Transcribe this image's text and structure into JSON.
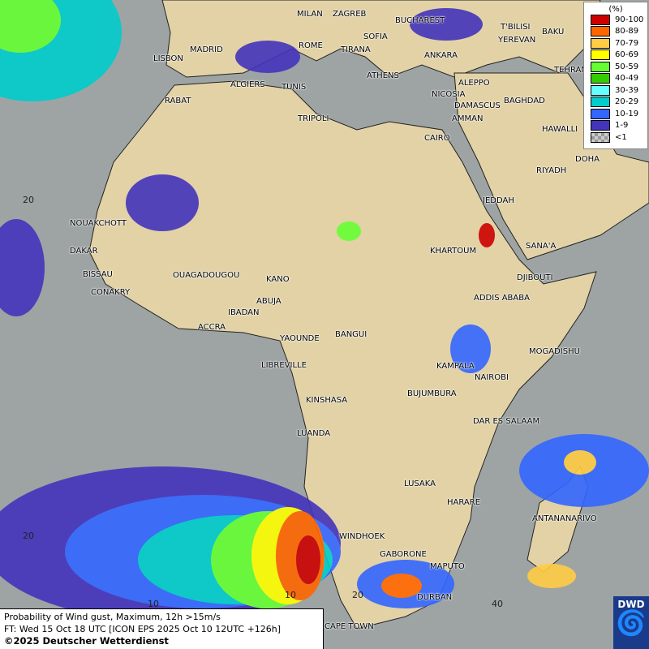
{
  "title": "Probability of Wind gust, Maximum, 12h >15m/s",
  "forecast_time": "FT: Wed 15 Oct 18 UTC [ICON EPS 2025 Oct 10 12UTC +126h]",
  "copyright": "©2025 Deutscher Wetterdienst",
  "logo": "DWD",
  "legend": {
    "unit": "(%)",
    "items": [
      {
        "label": "90-100",
        "color": "#cc0000"
      },
      {
        "label": "80-89",
        "color": "#ff6600"
      },
      {
        "label": "70-79",
        "color": "#ffcc44"
      },
      {
        "label": "60-69",
        "color": "#ffff00"
      },
      {
        "label": "50-59",
        "color": "#66ff33"
      },
      {
        "label": "40-49",
        "color": "#33cc00"
      },
      {
        "label": "30-39",
        "color": "#66ffff"
      },
      {
        "label": "20-29",
        "color": "#00cccc"
      },
      {
        "label": "10-19",
        "color": "#3366ff"
      },
      {
        "label": "1-9",
        "color": "#4433bb"
      },
      {
        "label": "<1",
        "color": "#aaaaaa"
      }
    ]
  },
  "cities": [
    "MILAN",
    "ZAGREB",
    "BUCHAREST",
    "T'BILISI",
    "BAKU",
    "MADRID",
    "ROME",
    "SOFIA",
    "TIRANA",
    "ANKARA",
    "YEREVAN",
    "LISBON",
    "TEHRAN",
    "ALGIERS",
    "TUNIS",
    "ATHENS",
    "ALEPPO",
    "RABAT",
    "NICOSIA",
    "DAMASCUS",
    "BAGHDAD",
    "TRIPOLI",
    "AMMAN",
    "CAIRO",
    "HAWALLI",
    "DOHA",
    "RIYADH",
    "JEDDAH",
    "NOUAKCHOTT",
    "KHARTOUM",
    "SANA'A",
    "DAKAR",
    "BISSAU",
    "DJIBOUTI",
    "OUAGADOUGOU",
    "KANO",
    "CONAKRY",
    "ABUJA",
    "ADDIS ABABA",
    "IBADAN",
    "ACCRA",
    "YAOUNDE",
    "BANGUI",
    "MOGADISHU",
    "LIBREVILLE",
    "KAMPALA",
    "NAIROBI",
    "BUJUMBURA",
    "KINSHASA",
    "DAR ES SALAAM",
    "LUANDA",
    "LUSAKA",
    "HARARE",
    "ANTANANARIVO",
    "WINDHOEK",
    "GABORONE",
    "MAPUTO",
    "DURBAN",
    "CAPE TOWN"
  ],
  "grid_labels": [
    "20",
    "20",
    "10",
    "10",
    "20",
    "40"
  ]
}
